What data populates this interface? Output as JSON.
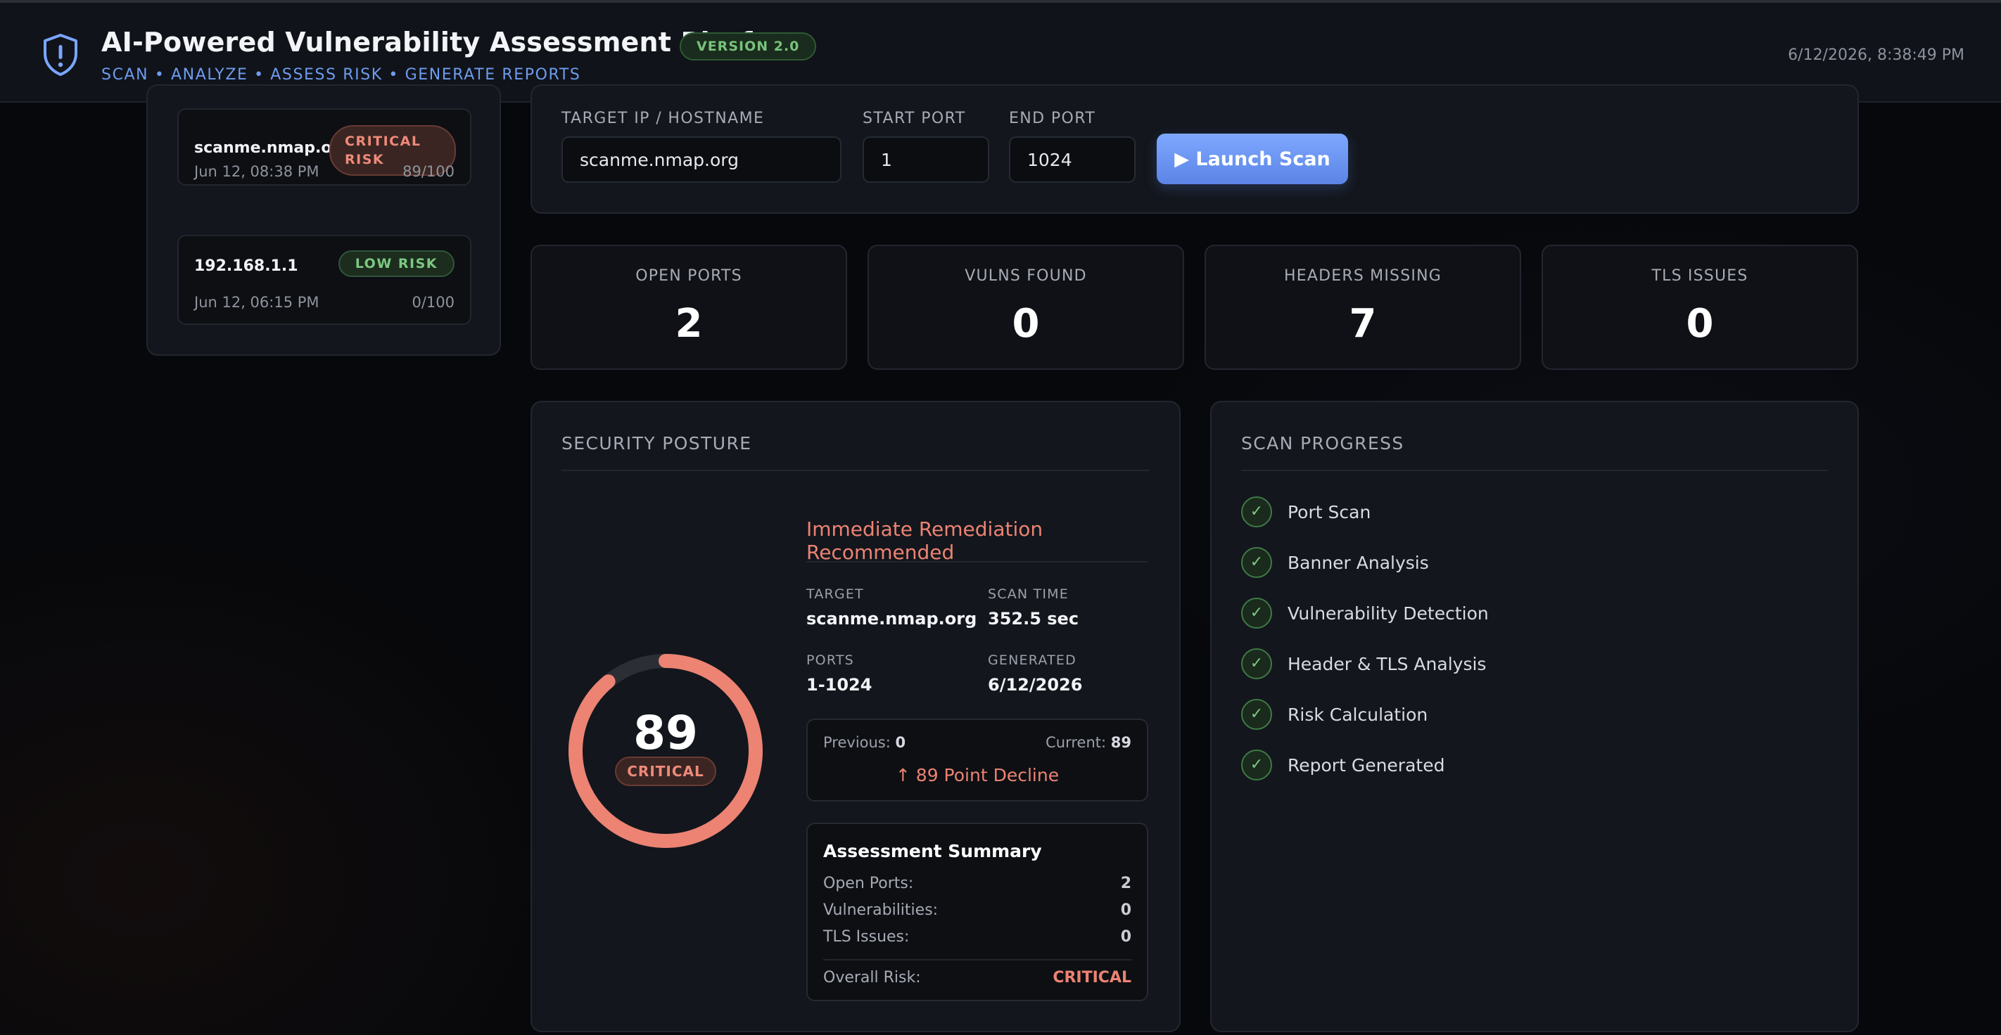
{
  "header": {
    "title": "AI-Powered Vulnerability Assessment Platform",
    "version": "VERSION 2.0",
    "subtitle": "SCAN • ANALYZE • ASSESS RISK • GENERATE REPORTS",
    "datetime": "6/12/2026, 8:38:49 PM",
    "logo_icon": "shield-alert-icon"
  },
  "history": [
    {
      "host": "scanme.nmap.org",
      "risk": "CRITICAL RISK",
      "date": "Jun 12, 08:38 PM",
      "score": "89/100"
    },
    {
      "host": "192.168.1.1",
      "risk": "LOW RISK",
      "date": "Jun 12, 06:15 PM",
      "score": "0/100"
    }
  ],
  "scan_form": {
    "target_label": "TARGET IP / HOSTNAME",
    "target_value": "scanme.nmap.org",
    "start_label": "START PORT",
    "start_value": "1",
    "end_label": "END PORT",
    "end_value": "1024",
    "launch_label": "▶ Launch Scan"
  },
  "stats": [
    {
      "label": "OPEN PORTS",
      "value": "2"
    },
    {
      "label": "VULNS FOUND",
      "value": "0"
    },
    {
      "label": "HEADERS MISSING",
      "value": "7"
    },
    {
      "label": "TLS ISSUES",
      "value": "0"
    }
  ],
  "posture": {
    "title": "SECURITY POSTURE",
    "score": "89",
    "score_fraction": 0.89,
    "level": "CRITICAL",
    "recommendation": "Immediate Remediation Recommended",
    "target_label": "TARGET",
    "target": "scanme.nmap.org",
    "scan_time_label": "SCAN TIME",
    "scan_time": "352.5 sec",
    "ports_label": "PORTS",
    "ports": "1-1024",
    "generated_label": "GENERATED",
    "generated": "6/12/2026",
    "previous_label": "Previous:",
    "previous": "0",
    "current_label": "Current:",
    "current": "89",
    "delta": "↑ 89 Point Decline",
    "summary_title": "Assessment Summary",
    "summary": {
      "open_ports_label": "Open Ports:",
      "open_ports": "2",
      "vulns_label": "Vulnerabilities:",
      "vulns": "0",
      "tls_label": "TLS Issues:",
      "tls": "0",
      "overall_label": "Overall Risk:",
      "overall": "CRITICAL"
    },
    "colors": {
      "critical": "#ec8373",
      "track": "#2b2e35"
    }
  },
  "progress": {
    "title": "SCAN PROGRESS",
    "steps": [
      "Port Scan",
      "Banner Analysis",
      "Vulnerability Detection",
      "Header & TLS Analysis",
      "Risk Calculation",
      "Report Generated"
    ],
    "check_glyph": "✓"
  }
}
